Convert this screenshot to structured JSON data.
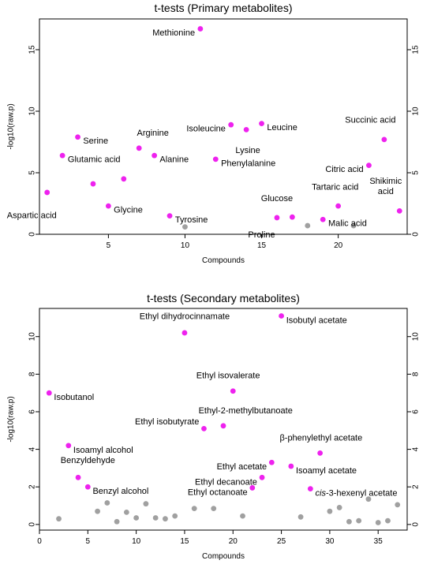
{
  "colors": {
    "sig": "#ee22ee",
    "nonsig": "#a0a0a0",
    "axis": "#000000"
  },
  "chart_data": [
    {
      "type": "scatter",
      "title": "t-tests (Primary metabolites)",
      "xlabel": "Compounds",
      "ylabel": "-log10(raw.p)",
      "xlim": [
        0.5,
        24.5
      ],
      "ylim": [
        0,
        17.5
      ],
      "xticks": [
        5,
        10,
        15,
        20
      ],
      "yticks": [
        0,
        5,
        10,
        15
      ],
      "right_axis": true,
      "grid": false,
      "points": [
        {
          "x": 1,
          "y": 3.4,
          "label": "Aspartic acid",
          "sig": true,
          "lx": -1,
          "ly": -1.9,
          "anchor": "middle"
        },
        {
          "x": 2,
          "y": 6.4,
          "label": "Glutamic acid",
          "sig": true,
          "lx": 0.35,
          "ly": -0.35,
          "anchor": "start"
        },
        {
          "x": 3,
          "y": 7.9,
          "label": "Serine",
          "sig": true,
          "lx": 0.35,
          "ly": -0.35,
          "anchor": "start"
        },
        {
          "x": 4,
          "y": 4.1,
          "label": "",
          "sig": true
        },
        {
          "x": 5,
          "y": 2.3,
          "label": "Glycine",
          "sig": true,
          "lx": 0.35,
          "ly": -0.35,
          "anchor": "start"
        },
        {
          "x": 6,
          "y": 4.5,
          "label": "",
          "sig": true
        },
        {
          "x": 7,
          "y": 7.0,
          "label": "Arginine",
          "sig": true,
          "lx": 0.9,
          "ly": 1.2,
          "anchor": "middle"
        },
        {
          "x": 8,
          "y": 6.4,
          "label": "Alanine",
          "sig": true,
          "lx": 0.35,
          "ly": -0.35,
          "anchor": "start"
        },
        {
          "x": 9,
          "y": 1.5,
          "label": "Tyrosine",
          "sig": true,
          "lx": 0.35,
          "ly": -0.35,
          "anchor": "start"
        },
        {
          "x": 10,
          "y": 0.6,
          "label": "",
          "sig": false
        },
        {
          "x": 11,
          "y": 16.7,
          "label": "Methionine",
          "sig": true,
          "lx": -0.35,
          "ly": -0.35,
          "anchor": "end"
        },
        {
          "x": 12,
          "y": 6.1,
          "label": "Phenylalanine",
          "sig": true,
          "lx": 0.35,
          "ly": -0.35,
          "anchor": "start"
        },
        {
          "x": 13,
          "y": 8.9,
          "label": "Isoleucine",
          "sig": true,
          "lx": -0.35,
          "ly": -0.35,
          "anchor": "end"
        },
        {
          "x": 14,
          "y": 8.5,
          "label": "Lysine",
          "sig": true,
          "lx": 0.1,
          "ly": -1.7,
          "anchor": "middle"
        },
        {
          "x": 15,
          "y": 9.0,
          "label": "Leucine",
          "sig": true,
          "lx": 0.35,
          "ly": -0.35,
          "anchor": "start"
        },
        {
          "x": 16,
          "y": 1.35,
          "label": "Proline",
          "sig": true,
          "lx": -1.0,
          "ly": -1.4,
          "anchor": "middle"
        },
        {
          "x": 17,
          "y": 1.4,
          "label": "Glucose",
          "sig": true,
          "lx": -1.0,
          "ly": 1.5,
          "anchor": "middle"
        },
        {
          "x": 18,
          "y": 0.7,
          "label": "",
          "sig": false
        },
        {
          "x": 19,
          "y": 1.2,
          "label": "Malic acid",
          "sig": true,
          "lx": 0.35,
          "ly": -0.35,
          "anchor": "start"
        },
        {
          "x": 20,
          "y": 2.3,
          "label": "Tartaric acid",
          "sig": true,
          "lx": -0.2,
          "ly": 1.5,
          "anchor": "middle"
        },
        {
          "x": 21,
          "y": 0.7,
          "label": "",
          "sig": false
        },
        {
          "x": 22,
          "y": 5.6,
          "label": "Citric acid",
          "sig": true,
          "lx": -0.35,
          "ly": -0.35,
          "anchor": "end"
        },
        {
          "x": 23,
          "y": 7.7,
          "label": "Succinic acid",
          "sig": true,
          "lx": -0.9,
          "ly": 1.55,
          "anchor": "middle"
        },
        {
          "x": 24,
          "y": 1.9,
          "label": "Shikimic\nacid",
          "sig": true,
          "lx": -0.9,
          "ly": 2.0,
          "anchor": "middle"
        }
      ]
    },
    {
      "type": "scatter",
      "title": "t-tests (Secondary metabolites)",
      "xlabel": "Compounds",
      "ylabel": "-log10(raw.p)",
      "xlim": [
        0,
        38
      ],
      "ylim": [
        -0.3,
        11.5
      ],
      "xticks": [
        0,
        5,
        10,
        15,
        20,
        25,
        30,
        35
      ],
      "yticks": [
        0,
        2,
        4,
        6,
        8,
        10
      ],
      "right_axis": true,
      "grid": false,
      "points": [
        {
          "x": 1,
          "y": 7.0,
          "label": "Isobutanol",
          "sig": true,
          "lx": 0.5,
          "ly": -0.25,
          "anchor": "start"
        },
        {
          "x": 2,
          "y": 0.3,
          "label": "",
          "sig": false
        },
        {
          "x": 3,
          "y": 4.2,
          "label": "Isoamyl alcohol",
          "sig": true,
          "lx": 0.5,
          "ly": -0.25,
          "anchor": "start"
        },
        {
          "x": 4,
          "y": 2.5,
          "label": "Benzyldehyde",
          "sig": true,
          "lx": 1.0,
          "ly": 0.9,
          "anchor": "middle"
        },
        {
          "x": 5,
          "y": 2.0,
          "label": "Benzyl alcohol",
          "sig": true,
          "lx": 0.5,
          "ly": -0.25,
          "anchor": "start"
        },
        {
          "x": 6,
          "y": 0.7,
          "label": "",
          "sig": false
        },
        {
          "x": 7,
          "y": 1.15,
          "label": "",
          "sig": false
        },
        {
          "x": 8,
          "y": 0.15,
          "label": "",
          "sig": false
        },
        {
          "x": 9,
          "y": 0.65,
          "label": "",
          "sig": false
        },
        {
          "x": 10,
          "y": 0.35,
          "label": "",
          "sig": false
        },
        {
          "x": 11,
          "y": 1.1,
          "label": "",
          "sig": false
        },
        {
          "x": 12,
          "y": 0.35,
          "label": "",
          "sig": false
        },
        {
          "x": 13,
          "y": 0.3,
          "label": "",
          "sig": false
        },
        {
          "x": 14,
          "y": 0.45,
          "label": "",
          "sig": false
        },
        {
          "x": 15,
          "y": 10.2,
          "label": "Ethyl dihydrocinnamate",
          "sig": true,
          "lx": 0,
          "ly": 0.85,
          "anchor": "middle"
        },
        {
          "x": 16,
          "y": 0.85,
          "label": "",
          "sig": false
        },
        {
          "x": 17,
          "y": 5.1,
          "label": "Ethyl isobutyrate",
          "sig": true,
          "lx": -0.5,
          "ly": 0.35,
          "anchor": "end"
        },
        {
          "x": 18,
          "y": 0.85,
          "label": "",
          "sig": false
        },
        {
          "x": 19,
          "y": 5.25,
          "label": "Ethyl-2-methylbutanoate",
          "sig": true,
          "lx": 2.3,
          "ly": 0.8,
          "anchor": "middle"
        },
        {
          "x": 20,
          "y": 7.1,
          "label": "Ethyl isovalerate",
          "sig": true,
          "lx": -0.5,
          "ly": 0.8,
          "anchor": "middle"
        },
        {
          "x": 21,
          "y": 0.45,
          "label": "",
          "sig": false
        },
        {
          "x": 22,
          "y": 1.95,
          "label": "Ethyl octanoate",
          "sig": true,
          "lx": -0.5,
          "ly": -0.25,
          "anchor": "end"
        },
        {
          "x": 23,
          "y": 2.5,
          "label": "Ethyl decanoate",
          "sig": true,
          "lx": -0.5,
          "ly": -0.25,
          "anchor": "end"
        },
        {
          "x": 24,
          "y": 3.3,
          "label": "Ethyl acetate",
          "sig": true,
          "lx": -0.5,
          "ly": -0.25,
          "anchor": "end"
        },
        {
          "x": 25,
          "y": 11.1,
          "label": "Isobutyl acetate",
          "sig": true,
          "lx": 0.5,
          "ly": -0.25,
          "anchor": "start"
        },
        {
          "x": 26,
          "y": 3.1,
          "label": "Isoamyl acetate",
          "sig": true,
          "lx": 0.5,
          "ly": -0.25,
          "anchor": "start"
        },
        {
          "x": 27,
          "y": 0.4,
          "label": "",
          "sig": false
        },
        {
          "x": 28,
          "y": 1.9,
          "label": "cis-3-hexenyl acetate",
          "sig": true,
          "lx": 0.5,
          "ly": -0.25,
          "anchor": "start",
          "italic_prefix": "cis"
        },
        {
          "x": 29,
          "y": 3.8,
          "label": "β-phenylethyl acetate",
          "sig": true,
          "lx": 0.1,
          "ly": 0.8,
          "anchor": "middle"
        },
        {
          "x": 30,
          "y": 0.7,
          "label": "",
          "sig": false
        },
        {
          "x": 31,
          "y": 0.9,
          "label": "",
          "sig": false
        },
        {
          "x": 32,
          "y": 0.15,
          "label": "",
          "sig": false
        },
        {
          "x": 33,
          "y": 0.2,
          "label": "",
          "sig": false
        },
        {
          "x": 34,
          "y": 1.35,
          "label": "",
          "sig": false
        },
        {
          "x": 35,
          "y": 0.1,
          "label": "",
          "sig": false
        },
        {
          "x": 36,
          "y": 0.2,
          "label": "",
          "sig": false
        },
        {
          "x": 37,
          "y": 1.05,
          "label": "",
          "sig": false
        }
      ]
    }
  ]
}
